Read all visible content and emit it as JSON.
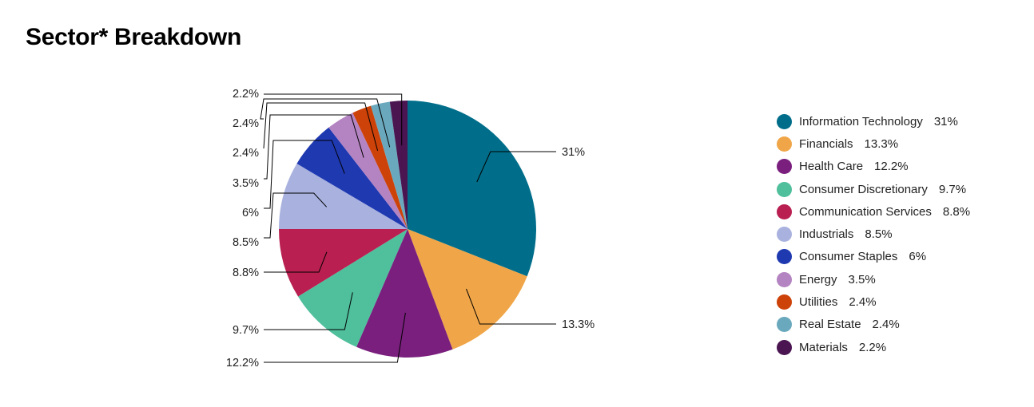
{
  "title": "Sector* Breakdown",
  "chart_data": {
    "type": "pie",
    "title": "Sector* Breakdown",
    "legend_position": "right",
    "slices": [
      {
        "name": "Information Technology",
        "value": 31,
        "label": "31%",
        "color": "#006e8a"
      },
      {
        "name": "Financials",
        "value": 13.3,
        "label": "13.3%",
        "color": "#f0a648"
      },
      {
        "name": "Health Care",
        "value": 12.2,
        "label": "12.2%",
        "color": "#7a1f7e"
      },
      {
        "name": "Consumer Discretionary",
        "value": 9.7,
        "label": "9.7%",
        "color": "#4fbf9c"
      },
      {
        "name": "Communication Services",
        "value": 8.8,
        "label": "8.8%",
        "color": "#b91f51"
      },
      {
        "name": "Industrials",
        "value": 8.5,
        "label": "8.5%",
        "color": "#a9b2df"
      },
      {
        "name": "Consumer Staples",
        "value": 6,
        "label": "6%",
        "color": "#1f39b1"
      },
      {
        "name": "Energy",
        "value": 3.5,
        "label": "3.5%",
        "color": "#b483c1"
      },
      {
        "name": "Utilities",
        "value": 2.4,
        "label": "2.4%",
        "color": "#cd4208"
      },
      {
        "name": "Real Estate",
        "value": 2.4,
        "label": "2.4%",
        "color": "#6aa9bd"
      },
      {
        "name": "Materials",
        "value": 2.2,
        "label": "2.2%",
        "color": "#4a1551"
      }
    ]
  }
}
